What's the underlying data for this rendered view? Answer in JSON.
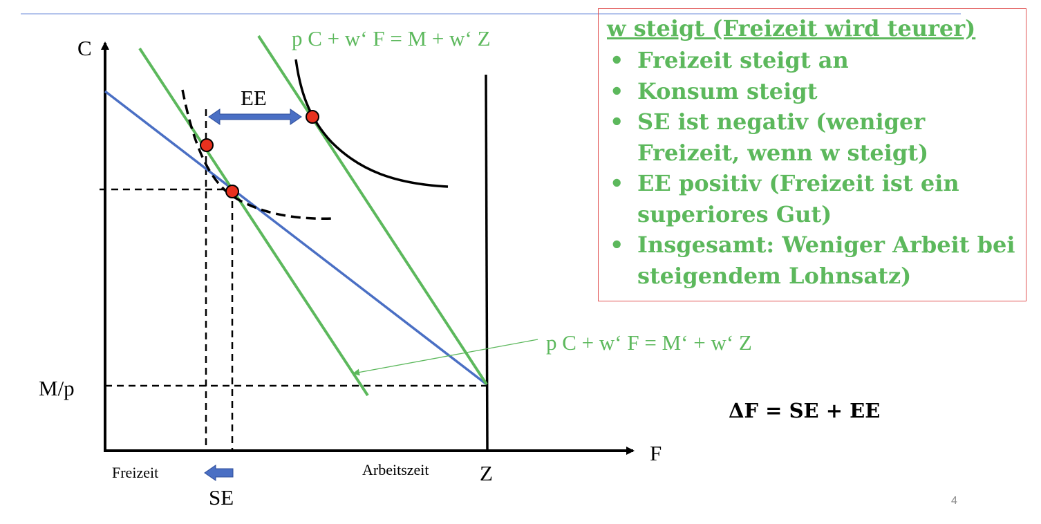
{
  "labels": {
    "axis_c": "C",
    "axis_f": "F",
    "m_over_p": "M/p",
    "freizeit": "Freizeit",
    "arbeitszeit": "Arbeitszeit",
    "z": "Z",
    "ee": "EE",
    "se": "SE",
    "budget_new": "p C + w‘ F  = M + w‘ Z",
    "budget_comp": "p C + w‘ F  = M‘ + w‘ Z",
    "equation": "ΔF = SE + EE"
  },
  "info_box": {
    "title": "w steigt (Freizeit wird teurer)",
    "items": [
      "Freizeit steigt an",
      "Konsum steigt",
      "SE ist negativ (weniger Freizeit, wenn w steigt)",
      "EE positiv (Freizeit ist ein superiores Gut)",
      "Insgesamt: Weniger Arbeit bei steigendem Lohnsatz)"
    ]
  },
  "page_number": "4",
  "colors": {
    "green": "#5cb85c",
    "blue": "#4a6fc4",
    "red_point": "#e8311e",
    "box_border": "#e05050"
  }
}
